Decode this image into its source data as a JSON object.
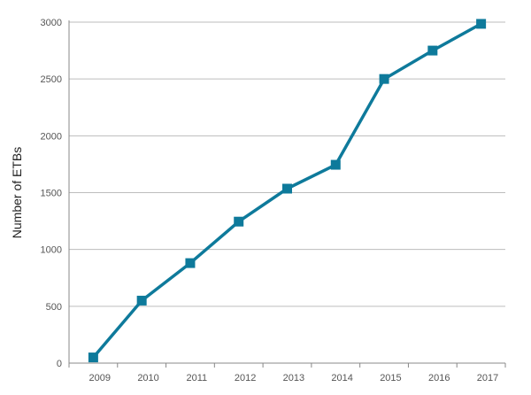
{
  "chart_data": {
    "type": "line",
    "title": "",
    "xlabel": "",
    "ylabel": "Number of ETBs",
    "x_tick_labels": [
      "2009",
      "2010",
      "2011",
      "2012",
      "2013",
      "2014",
      "2015",
      "2016",
      "2017"
    ],
    "y_tick_labels": [
      "0",
      "500",
      "1000",
      "1500",
      "2000",
      "2500",
      "3000"
    ],
    "ylim": [
      0,
      3000
    ],
    "grid": "horizontal",
    "series": [
      {
        "color": "#0E7A9B",
        "x": [
          2008.5,
          2009.5,
          2010.5,
          2011.5,
          2012.5,
          2013.5,
          2014.5,
          2015.5,
          2016.5
        ],
        "y": [
          50,
          550,
          880,
          1245,
          1535,
          1745,
          2500,
          2750,
          2985
        ]
      }
    ]
  }
}
